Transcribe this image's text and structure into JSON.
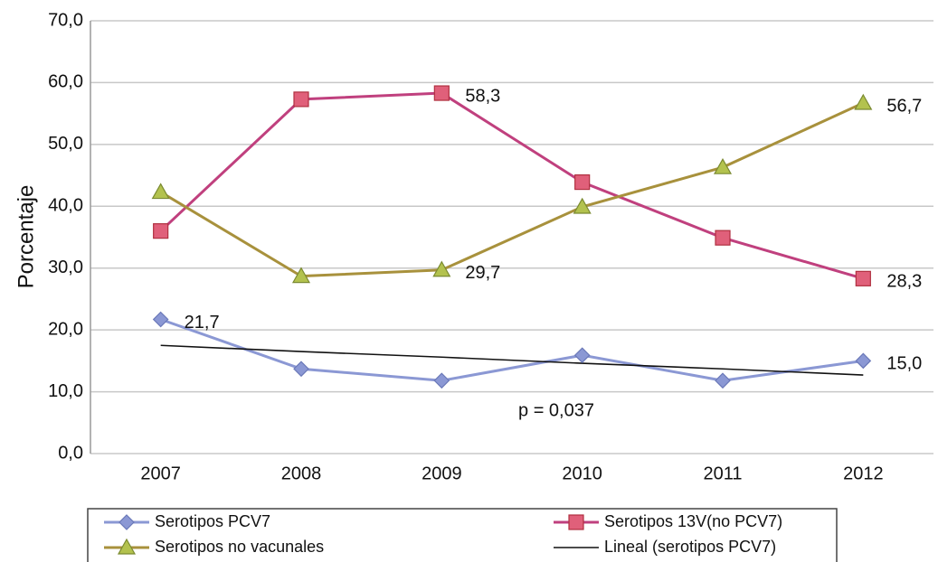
{
  "chart_data": {
    "type": "line",
    "y_label": "Porcentaje",
    "annotation": "p = 0,037",
    "categories": [
      "2007",
      "2008",
      "2009",
      "2010",
      "2011",
      "2012"
    ],
    "ylim": [
      0,
      70
    ],
    "yticks": [
      {
        "value": 0,
        "label": "0,0"
      },
      {
        "value": 10,
        "label": "10,0"
      },
      {
        "value": 20,
        "label": "20,0"
      },
      {
        "value": 30,
        "label": "30,0"
      },
      {
        "value": 40,
        "label": "40,0"
      },
      {
        "value": 50,
        "label": "50,0"
      },
      {
        "value": 60,
        "label": "60,0"
      },
      {
        "value": 70,
        "label": "70,0"
      }
    ],
    "grid": true,
    "legend": "bottom",
    "series": [
      {
        "name": "Serotipos PCV7",
        "color": "#8b98d4",
        "marker": "diamond",
        "values": [
          21.7,
          13.7,
          11.8,
          15.9,
          11.8,
          15.0
        ],
        "value_labels": [
          "21,7",
          null,
          null,
          null,
          null,
          "15,0"
        ]
      },
      {
        "name": "Serotipos 13V(no PCV7)",
        "color": "#c0407e",
        "marker": "square",
        "values": [
          36.0,
          57.3,
          58.3,
          43.9,
          34.9,
          28.3
        ],
        "value_labels": [
          null,
          null,
          "58,3",
          null,
          null,
          "28,3"
        ]
      },
      {
        "name": "Serotipos no vacunales",
        "color": "#a8913c",
        "marker": "triangle",
        "values": [
          42.3,
          28.7,
          29.7,
          39.9,
          46.3,
          56.7
        ],
        "value_labels": [
          null,
          null,
          "29,7",
          null,
          null,
          "56,7"
        ]
      },
      {
        "name": "Lineal (serotipos PCV7)",
        "color": "#111111",
        "marker": "none",
        "values": [
          17.5,
          16.5,
          15.6,
          14.6,
          13.7,
          12.7
        ]
      }
    ]
  }
}
